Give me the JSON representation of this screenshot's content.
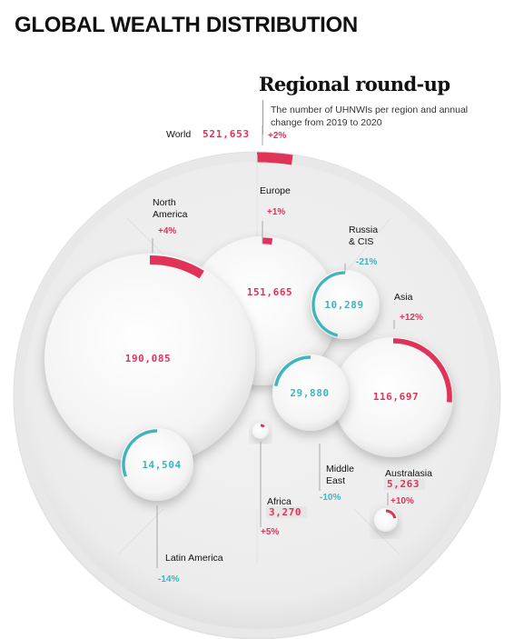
{
  "page_title": "GLOBAL WEALTH DISTRIBUTION",
  "subtitle": "Regional round-up",
  "description": "The number of UHNWIs per region and annual change from 2019 to 2020",
  "colors": {
    "positive": "#e0335a",
    "negative": "#3fb4bf",
    "label": "#222222",
    "badge_bg": "#e6e6e6",
    "leader": "#a8a8a8"
  },
  "chart_data": {
    "type": "bubble",
    "title": "GLOBAL WEALTH DISTRIBUTION",
    "subtitle": "Regional round-up",
    "total": {
      "region": "World",
      "value": 521653,
      "value_text": "521,653",
      "change_pct": 2,
      "change_text": "+2%"
    },
    "regions": [
      {
        "region": "North America",
        "value": 190085,
        "value_text": "190,085",
        "change_pct": 4,
        "change_text": "+4%"
      },
      {
        "region": "Europe",
        "value": 151665,
        "value_text": "151,665",
        "change_pct": 1,
        "change_text": "+1%"
      },
      {
        "region": "Russia & CIS",
        "value": 10289,
        "value_text": "10,289",
        "change_pct": -21,
        "change_text": "-21%"
      },
      {
        "region": "Asia",
        "value": 116697,
        "value_text": "116,697",
        "change_pct": 12,
        "change_text": "+12%"
      },
      {
        "region": "Middle East",
        "value": 29880,
        "value_text": "29,880",
        "change_pct": -10,
        "change_text": "-10%"
      },
      {
        "region": "Latin America",
        "value": 14504,
        "value_text": "14,504",
        "change_pct": -14,
        "change_text": "-14%"
      },
      {
        "region": "Africa",
        "value": 3270,
        "value_text": "3,270",
        "change_pct": 5,
        "change_text": "+5%"
      },
      {
        "region": "Australasia",
        "value": 5263,
        "value_text": "5,263",
        "change_pct": 10,
        "change_text": "+10%"
      }
    ]
  },
  "labels": {
    "world": "World",
    "north_america": [
      "North",
      "America"
    ],
    "europe": "Europe",
    "russia": [
      "Russia",
      "& CIS"
    ],
    "asia": "Asia",
    "middle_east": [
      "Middle",
      "East"
    ],
    "latin_america": "Latin America",
    "africa": "Africa",
    "australasia": "Australasia"
  }
}
